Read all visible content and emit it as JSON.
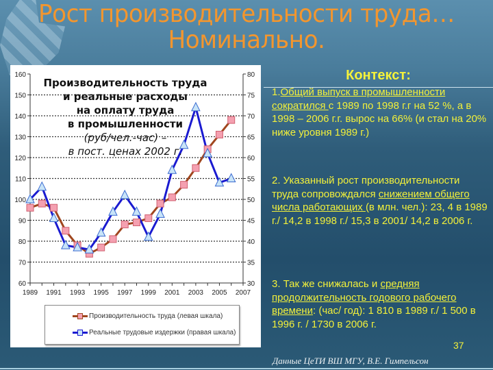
{
  "slide": {
    "title_line1": "Рост производительности труда…",
    "title_line2": "Номинально.",
    "page_number": "37",
    "source": "Данные ЦеТИ ВШ МГУ, В.Е. Гимпельсон"
  },
  "chart_caption": {
    "line1": "Производительность труда",
    "line2": "и реальные расходы",
    "line3": "на оплату труда",
    "line4": "в промышленности",
    "line5": "(руб/чел.-час) –",
    "line6": "в пост. ценах 2002 г."
  },
  "legend": {
    "series1": "Производительность труда (левая шкала)",
    "series2": "Реальные трудовые издержки (правая шкала)"
  },
  "context": {
    "heading": "Контекст:",
    "item1_num": "1.",
    "item1_underlined": "Общий выпуск в промышленности сократился ",
    "item1_rest": "с 1989 по 1998 г.г на 52 %, а в 1998 – 2006 г.г. вырос на 66% (и стал на 20% ниже уровня 1989 г.)",
    "item2_start": "2. Указанный рост производительности труда сопровождался ",
    "item2_underlined": "снижением общего числа работающих ",
    "item2_rest": "(в млн. чел.): 23, 4  в 1989 г./ 14,2 в 1998 г./ 15,3 в 2001/ 14,2 в 2006 г.",
    "item3_start": "3. Так же снижалась и ",
    "item3_underlined": "средняя продолжительность годового рабочего времени",
    "item3_rest": ": (час/ год): 1 810 в 1989 г./ 1 500 в 1996 г. / 1730 в 2006 г."
  },
  "colors": {
    "title": "#f3962e",
    "context_text": "#f2f03a",
    "series1_line": "#a0461e",
    "series1_marker": "#f4a0b0",
    "series2_line": "#1a1ad0",
    "series2_marker": "#c8e4f8"
  },
  "chart_data": {
    "type": "line",
    "title": "Производительность труда и реальные расходы на оплату труда в промышленности (руб/чел.-час) – в пост. ценах 2002 г.",
    "x": [
      1989,
      1990,
      1991,
      1992,
      1993,
      1994,
      1995,
      1996,
      1997,
      1998,
      1999,
      2000,
      2001,
      2002,
      2003,
      2004,
      2005,
      2006
    ],
    "x_ticks": [
      "1989",
      "1991",
      "1993",
      "1995",
      "1997",
      "1999",
      "2001",
      "2003",
      "2005",
      "2007"
    ],
    "xlim": [
      1989,
      2007
    ],
    "y_left_ticks": [
      60,
      70,
      80,
      90,
      100,
      110,
      120,
      130,
      140,
      150,
      160
    ],
    "y_left_lim": [
      60,
      160
    ],
    "y_right_ticks": [
      30,
      35,
      40,
      45,
      50,
      55,
      60,
      65,
      70,
      75,
      80
    ],
    "y_right_lim": [
      30,
      80
    ],
    "grid": true,
    "legend_position": "bottom",
    "series": [
      {
        "name": "Производительность труда (левая шкала)",
        "axis": "left",
        "marker": "square",
        "values": [
          96,
          98,
          96,
          85,
          78,
          74,
          77,
          81,
          88,
          89,
          91,
          98,
          101,
          107,
          115,
          124,
          131,
          138
        ]
      },
      {
        "name": "Реальные трудовые издержки (правая шкала)",
        "axis": "right",
        "marker": "triangle",
        "values": [
          50,
          53,
          45.5,
          39,
          38.5,
          38,
          42,
          47,
          51,
          47,
          41,
          46.5,
          57,
          63,
          72,
          61,
          54,
          55
        ]
      }
    ]
  }
}
